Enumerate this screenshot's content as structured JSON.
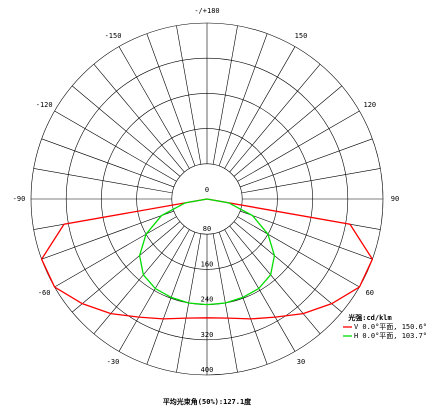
{
  "chart_data": {
    "type": "polar",
    "title": "平均光束角(50%):127.1度",
    "legend_title": "光强:cd/klm",
    "angles": [
      -90,
      -80,
      -70,
      -60,
      -50,
      -40,
      -30,
      -20,
      -10,
      0,
      10,
      20,
      30,
      40,
      50,
      60,
      70,
      80,
      90
    ],
    "rlim": [
      0,
      400
    ],
    "rticks": [
      0,
      80,
      160,
      240,
      320,
      400
    ],
    "angle_ticks": [
      {
        "value": 180,
        "label": "-/+180"
      },
      150,
      120,
      90,
      60,
      30,
      -30,
      -60,
      -90,
      -120,
      -150
    ],
    "series": [
      {
        "name": "V 0.0°平面, 150.6°",
        "color": "#ff0000",
        "values": [
          0,
          330,
          400,
          400,
          370,
          340,
          310,
          290,
          275,
          270,
          275,
          290,
          310,
          340,
          370,
          400,
          400,
          330,
          0
        ]
      },
      {
        "name": "H 0.0°平面, 103.7°",
        "color": "#00dd00",
        "values": [
          0,
          50,
          110,
          160,
          200,
          225,
          235,
          238,
          240,
          240,
          240,
          238,
          235,
          225,
          200,
          160,
          110,
          50,
          0
        ]
      }
    ],
    "legend": "lower right"
  }
}
